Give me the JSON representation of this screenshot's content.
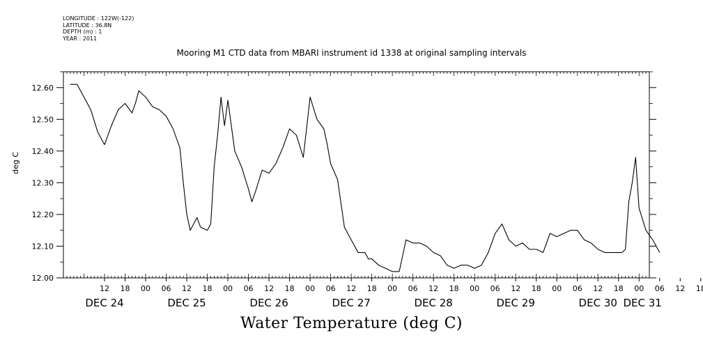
{
  "header": {
    "longitude": "LONGITUDE : 122W(-122)",
    "latitude": "LATITUDE : 36.8N",
    "depth": "DEPTH (m) : 1",
    "year": "YEAR : 2011"
  },
  "chart_data": {
    "type": "line",
    "title": "Mooring M1 CTD data from MBARI instrument id 1338 at original sampling intervals",
    "ylabel": "deg C",
    "caption": "Water Temperature (deg C)",
    "xlim_hours": [
      0,
      171
    ],
    "ylim": [
      12.0,
      12.65
    ],
    "grid": false,
    "yticks": [
      "12.00",
      "12.10",
      "12.20",
      "12.30",
      "12.40",
      "12.50",
      "12.60"
    ],
    "hour_tick_labels": [
      "12",
      "18",
      "00",
      "06",
      "12",
      "18",
      "00",
      "06",
      "12",
      "18",
      "00",
      "06",
      "12",
      "18",
      "00",
      "06",
      "12",
      "18",
      "00",
      "06",
      "12",
      "18",
      "00",
      "06",
      "12",
      "18",
      "00",
      "06",
      "12",
      "18",
      "00",
      "06"
    ],
    "day_labels": [
      "DEC 24",
      "DEC 25",
      "DEC 26",
      "DEC 27",
      "DEC 28",
      "DEC 29",
      "DEC 30",
      "DEC 31"
    ],
    "series": [
      {
        "x": [
          "Dec 24 02:00",
          "Dec 24 04:00",
          "Dec 24 06:00",
          "Dec 24 08:00",
          "Dec 24 10:00",
          "Dec 24 12:00",
          "Dec 24 14:00",
          "Dec 24 16:00",
          "Dec 24 18:00",
          "Dec 24 20:00",
          "Dec 24 21:00",
          "Dec 24 22:00",
          "Dec 24 23:00",
          "Dec 25 00:00",
          "Dec 25 02:00",
          "Dec 25 04:00",
          "Dec 25 06:00",
          "Dec 25 08:00",
          "Dec 25 10:00",
          "Dec 25 11:00",
          "Dec 25 12:00",
          "Dec 25 13:00",
          "Dec 25 14:00",
          "Dec 25 15:00",
          "Dec 25 16:00",
          "Dec 25 18:00",
          "Dec 25 19:00",
          "Dec 25 20:00",
          "Dec 25 21:00",
          "Dec 25 22:00",
          "Dec 25 23:00",
          "Dec 26 00:00",
          "Dec 26 02:00",
          "Dec 26 04:00",
          "Dec 26 06:00",
          "Dec 26 07:00",
          "Dec 26 08:00",
          "Dec 26 10:00",
          "Dec 26 12:00",
          "Dec 26 14:00",
          "Dec 26 16:00",
          "Dec 26 18:00",
          "Dec 26 20:00",
          "Dec 26 22:00",
          "Dec 27 00:00",
          "Dec 27 02:00",
          "Dec 27 04:00",
          "Dec 27 05:00",
          "Dec 27 06:00",
          "Dec 27 08:00",
          "Dec 27 10:00",
          "Dec 27 12:00",
          "Dec 27 14:00",
          "Dec 27 16:00",
          "Dec 27 17:00",
          "Dec 27 18:00",
          "Dec 27 20:00",
          "Dec 27 22:00",
          "Dec 28 00:00",
          "Dec 28 02:00",
          "Dec 28 04:00",
          "Dec 28 06:00",
          "Dec 28 08:00",
          "Dec 28 10:00",
          "Dec 28 12:00",
          "Dec 28 14:00",
          "Dec 28 16:00",
          "Dec 28 18:00",
          "Dec 28 20:00",
          "Dec 28 22:00",
          "Dec 29 00:00",
          "Dec 29 02:00",
          "Dec 29 04:00",
          "Dec 29 06:00",
          "Dec 29 08:00",
          "Dec 29 10:00",
          "Dec 29 12:00",
          "Dec 29 14:00",
          "Dec 29 16:00",
          "Dec 29 18:00",
          "Dec 29 20:00",
          "Dec 29 22:00",
          "Dec 30 00:00",
          "Dec 30 02:00",
          "Dec 30 04:00",
          "Dec 30 06:00",
          "Dec 30 08:00",
          "Dec 30 10:00",
          "Dec 30 12:00",
          "Dec 30 14:00",
          "Dec 30 16:00",
          "Dec 30 18:00",
          "Dec 30 19:00",
          "Dec 30 20:00",
          "Dec 30 21:00",
          "Dec 30 22:00",
          "Dec 30 23:00",
          "Dec 31 00:00",
          "Dec 31 02:00",
          "Dec 31 04:00",
          "Dec 31 06:00"
        ],
        "values": [
          12.61,
          12.61,
          12.57,
          12.53,
          12.46,
          12.42,
          12.48,
          12.53,
          12.55,
          12.52,
          12.55,
          12.59,
          12.58,
          12.57,
          12.54,
          12.53,
          12.51,
          12.47,
          12.41,
          12.3,
          12.2,
          12.15,
          12.17,
          12.19,
          12.16,
          12.15,
          12.17,
          12.35,
          12.45,
          12.57,
          12.48,
          12.56,
          12.4,
          12.35,
          12.28,
          12.24,
          12.27,
          12.34,
          12.33,
          12.36,
          12.41,
          12.47,
          12.45,
          12.38,
          12.57,
          12.5,
          12.47,
          12.42,
          12.36,
          12.31,
          12.16,
          12.12,
          12.08,
          12.08,
          12.06,
          12.06,
          12.04,
          12.03,
          12.02,
          12.02,
          12.12,
          12.11,
          12.11,
          12.1,
          12.08,
          12.07,
          12.04,
          12.03,
          12.04,
          12.04,
          12.03,
          12.04,
          12.08,
          12.14,
          12.17,
          12.12,
          12.1,
          12.11,
          12.09,
          12.09,
          12.08,
          12.14,
          12.13,
          12.14,
          12.15,
          12.15,
          12.12,
          12.11,
          12.09,
          12.08,
          12.08,
          12.08,
          12.08,
          12.09,
          12.24,
          12.3,
          12.38,
          12.22,
          12.15,
          12.12,
          12.08
        ]
      }
    ]
  }
}
